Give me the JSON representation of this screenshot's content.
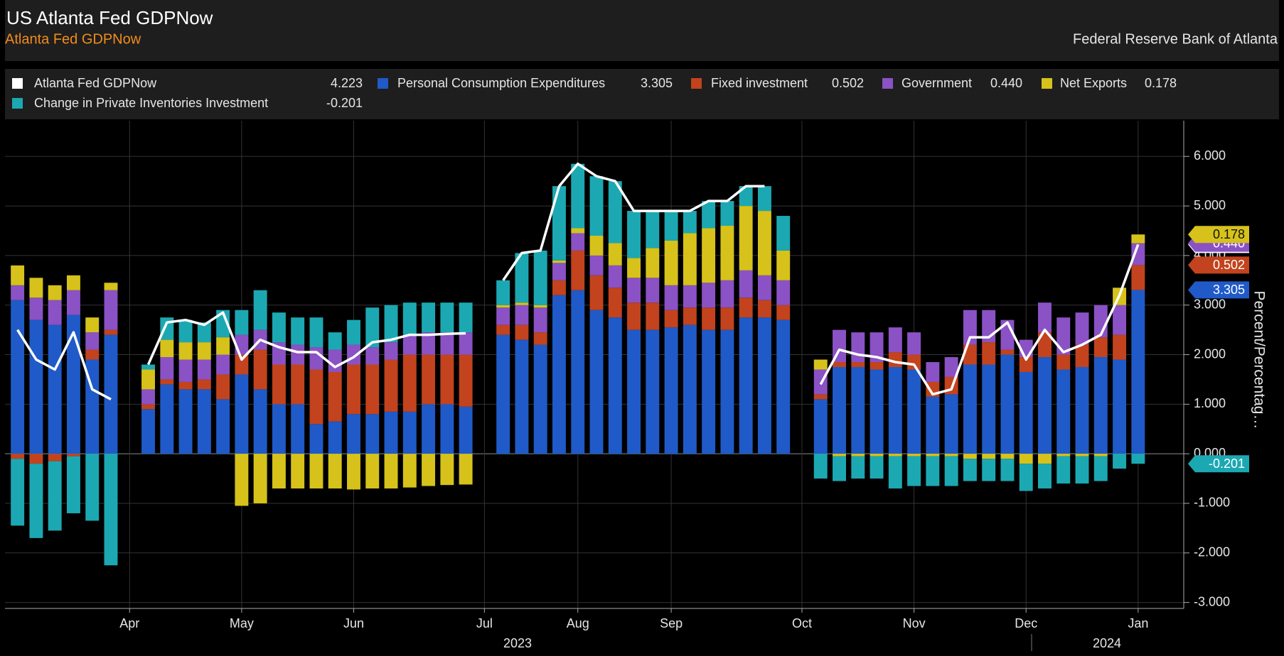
{
  "chart_data": {
    "type": "bar",
    "stacked": true,
    "title": "US Atlanta Fed GDPNow",
    "subtitle": "Atlanta Fed GDPNow",
    "source": "Federal Reserve Bank of Atlanta",
    "y_axis_label": "Percent/Percentag…",
    "year_labels": [
      "2023",
      "2024"
    ],
    "categories": [
      null,
      null,
      null,
      null,
      null,
      null,
      "Apr",
      null,
      null,
      null,
      null,
      null,
      "May",
      null,
      null,
      null,
      null,
      null,
      "Jun",
      null,
      null,
      null,
      null,
      null,
      null,
      "Jul",
      null,
      null,
      null,
      null,
      "Aug",
      null,
      null,
      null,
      null,
      "Sep",
      null,
      null,
      null,
      null,
      null,
      null,
      "Oct",
      null,
      null,
      null,
      null,
      null,
      "Nov",
      null,
      null,
      null,
      null,
      null,
      "Dec",
      null,
      null,
      null,
      null,
      null,
      "Jan"
    ],
    "ylim": [
      -3.12,
      6.72
    ],
    "yticks": [
      {
        "value": -3,
        "label": "-3.000"
      },
      {
        "value": -2,
        "label": "-2.000"
      },
      {
        "value": -1,
        "label": "-1.000"
      },
      {
        "value": 0,
        "label": "0.000"
      },
      {
        "value": 1,
        "label": "1.000"
      },
      {
        "value": 2,
        "label": "2.000"
      },
      {
        "value": 3,
        "label": "3.000"
      },
      {
        "value": 4,
        "label": "4.000"
      },
      {
        "value": 5,
        "label": "5.000"
      },
      {
        "value": 6,
        "label": "6.000"
      }
    ],
    "grid": true,
    "series": [
      {
        "name": "Atlanta Fed GDPNow",
        "kind": "line",
        "color": "#ffffff",
        "last_value_label": "4.223",
        "values": [
          2.5,
          1.9,
          1.7,
          2.45,
          1.3,
          1.1,
          null,
          1.8,
          2.65,
          2.7,
          2.6,
          2.85,
          1.9,
          2.3,
          2.15,
          2.05,
          2.05,
          1.75,
          1.95,
          2.25,
          2.3,
          2.4,
          2.4,
          2.42,
          2.43,
          null,
          3.5,
          4.05,
          4.1,
          5.4,
          5.85,
          5.6,
          5.5,
          4.9,
          4.9,
          4.9,
          4.9,
          5.1,
          5.1,
          5.4,
          5.4,
          null,
          null,
          1.4,
          2.1,
          2.0,
          1.95,
          1.85,
          1.8,
          1.2,
          1.3,
          2.35,
          2.35,
          2.65,
          1.9,
          2.5,
          2.05,
          2.2,
          2.4,
          3.2,
          4.223
        ]
      },
      {
        "name": "Personal Consumption Expenditures",
        "kind": "bar",
        "color": "#1f5ac8",
        "last_value_label": "3.305",
        "values": [
          3.1,
          2.7,
          2.6,
          2.8,
          1.9,
          2.4,
          null,
          0.9,
          1.4,
          1.3,
          1.3,
          1.1,
          1.6,
          1.3,
          1.0,
          1.0,
          0.6,
          0.65,
          0.8,
          0.8,
          0.85,
          0.85,
          1.0,
          1.0,
          0.95,
          null,
          2.4,
          2.3,
          2.2,
          3.2,
          3.3,
          2.9,
          2.75,
          2.5,
          2.5,
          2.55,
          2.6,
          2.5,
          2.5,
          2.75,
          2.75,
          2.7,
          null,
          1.1,
          1.75,
          1.75,
          1.7,
          1.75,
          1.7,
          1.15,
          1.2,
          1.8,
          1.8,
          2.0,
          1.65,
          1.95,
          1.7,
          1.75,
          1.95,
          1.9,
          3.305
        ]
      },
      {
        "name": "Fixed investment",
        "kind": "bar",
        "color": "#c2431d",
        "last_value_label": "0.502",
        "values": [
          -0.1,
          -0.2,
          -0.15,
          -0.05,
          0.2,
          0.1,
          null,
          0.1,
          0.1,
          0.15,
          0.2,
          0.5,
          0.4,
          0.8,
          0.8,
          0.8,
          1.1,
          1.0,
          1.0,
          1.0,
          1.05,
          1.15,
          1.0,
          1.0,
          1.05,
          null,
          0.2,
          0.3,
          0.25,
          0.3,
          0.8,
          0.7,
          0.6,
          0.55,
          0.55,
          0.35,
          0.35,
          0.45,
          0.45,
          0.4,
          0.35,
          0.3,
          null,
          0.1,
          0.1,
          0.1,
          0.15,
          0.3,
          0.3,
          0.3,
          0.35,
          0.4,
          0.45,
          0.1,
          0.3,
          0.5,
          0.3,
          0.45,
          0.4,
          0.5,
          0.502
        ]
      },
      {
        "name": "Government",
        "kind": "bar",
        "color": "#8a52c4",
        "last_value_label": "0.440",
        "values": [
          0.3,
          0.45,
          0.5,
          0.5,
          0.35,
          0.8,
          null,
          0.3,
          0.45,
          0.45,
          0.4,
          0.4,
          0.4,
          0.4,
          0.45,
          0.4,
          0.45,
          0.45,
          0.4,
          0.35,
          0.35,
          0.4,
          0.45,
          0.45,
          0.45,
          null,
          0.35,
          0.4,
          0.5,
          0.35,
          0.35,
          0.4,
          0.45,
          0.5,
          0.5,
          0.5,
          0.45,
          0.5,
          0.55,
          0.55,
          0.5,
          0.5,
          null,
          0.5,
          0.65,
          0.6,
          0.6,
          0.5,
          0.45,
          0.4,
          0.4,
          0.7,
          0.65,
          0.6,
          0.35,
          0.6,
          0.75,
          0.65,
          0.65,
          0.6,
          0.44
        ]
      },
      {
        "name": "Net Exports",
        "kind": "bar",
        "color": "#d6c21a",
        "last_value_label": "0.178",
        "values": [
          0.4,
          0.4,
          0.3,
          0.3,
          0.3,
          0.15,
          null,
          0.4,
          0.35,
          0.35,
          0.35,
          0.35,
          -1.05,
          -1.0,
          -0.7,
          -0.7,
          -0.7,
          -0.7,
          -0.72,
          -0.7,
          -0.7,
          -0.68,
          -0.65,
          -0.63,
          -0.62,
          null,
          0.05,
          0.05,
          0.05,
          0.05,
          0.1,
          0.4,
          0.45,
          0.4,
          0.6,
          0.9,
          1.05,
          1.1,
          1.1,
          1.3,
          1.3,
          0.6,
          null,
          0.2,
          -0.05,
          -0.05,
          -0.05,
          -0.05,
          -0.05,
          -0.05,
          -0.05,
          -0.1,
          -0.1,
          -0.1,
          -0.2,
          -0.2,
          -0.05,
          -0.05,
          -0.05,
          0.35,
          0.178
        ]
      },
      {
        "name": "Change in Private Inventories Investment",
        "kind": "bar",
        "color": "#1ca8b2",
        "last_value_label": "-0.201",
        "values": [
          -1.35,
          -1.5,
          -1.4,
          -1.15,
          -1.35,
          -2.25,
          null,
          0.1,
          0.45,
          0.45,
          0.4,
          0.55,
          0.5,
          0.8,
          0.6,
          0.55,
          0.6,
          0.35,
          0.5,
          0.8,
          0.75,
          0.65,
          0.6,
          0.6,
          0.6,
          null,
          0.5,
          1.0,
          1.1,
          1.5,
          1.3,
          1.2,
          1.25,
          0.95,
          0.75,
          0.6,
          0.45,
          0.55,
          0.5,
          0.4,
          0.5,
          0.7,
          null,
          -0.5,
          -0.5,
          -0.45,
          -0.45,
          -0.65,
          -0.6,
          -0.6,
          -0.6,
          -0.45,
          -0.45,
          -0.45,
          -0.55,
          -0.5,
          -0.55,
          -0.55,
          -0.5,
          -0.3,
          -0.201
        ]
      }
    ]
  }
}
